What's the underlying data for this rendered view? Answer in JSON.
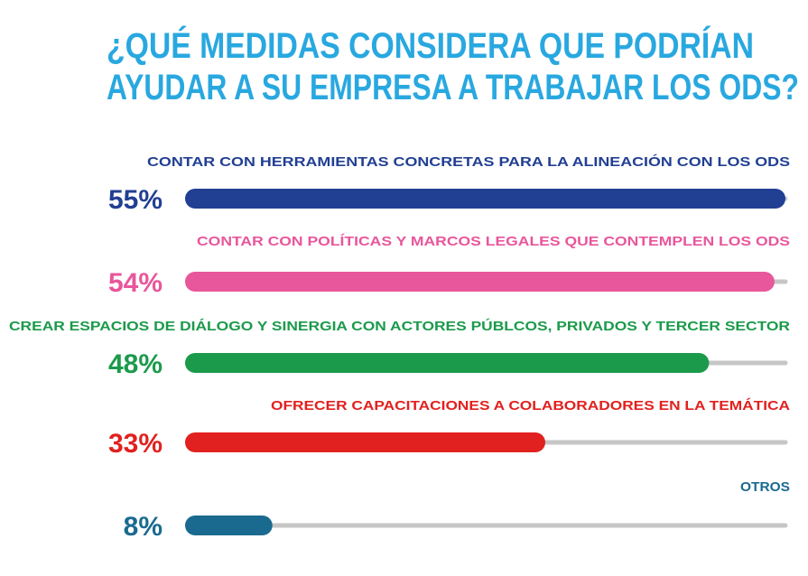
{
  "chart_data": {
    "type": "bar",
    "title": [
      "¿QUÉ MEDIDAS CONSIDERA QUE PODRÍAN",
      "AYUDAR A SU EMPRESA A TRABAJAR LOS ODS?"
    ],
    "categories": [
      "CONTAR CON HERRAMIENTAS CONCRETAS PARA LA ALINEACIÓN CON LOS ODS",
      "CONTAR CON POLÍTICAS Y MARCOS LEGALES QUE CONTEMPLEN LOS ODS",
      "CREAR ESPACIOS DE DIÁLOGO Y SINERGIA CON ACTORES PÚBLCOS, PRIVADOS Y TERCER SECTOR",
      "OFRECER CAPACITACIONES A COLABORADORES EN LA TEMÁTICA",
      "OTROS"
    ],
    "values": [
      55,
      54,
      48,
      33,
      8
    ],
    "value_labels": [
      "55%",
      "54%",
      "48%",
      "33%",
      "8%"
    ],
    "colors": [
      "#213f93",
      "#e8569b",
      "#1b9a4b",
      "#e1211f",
      "#1a6a8f"
    ],
    "xlim": [
      0,
      55
    ]
  }
}
